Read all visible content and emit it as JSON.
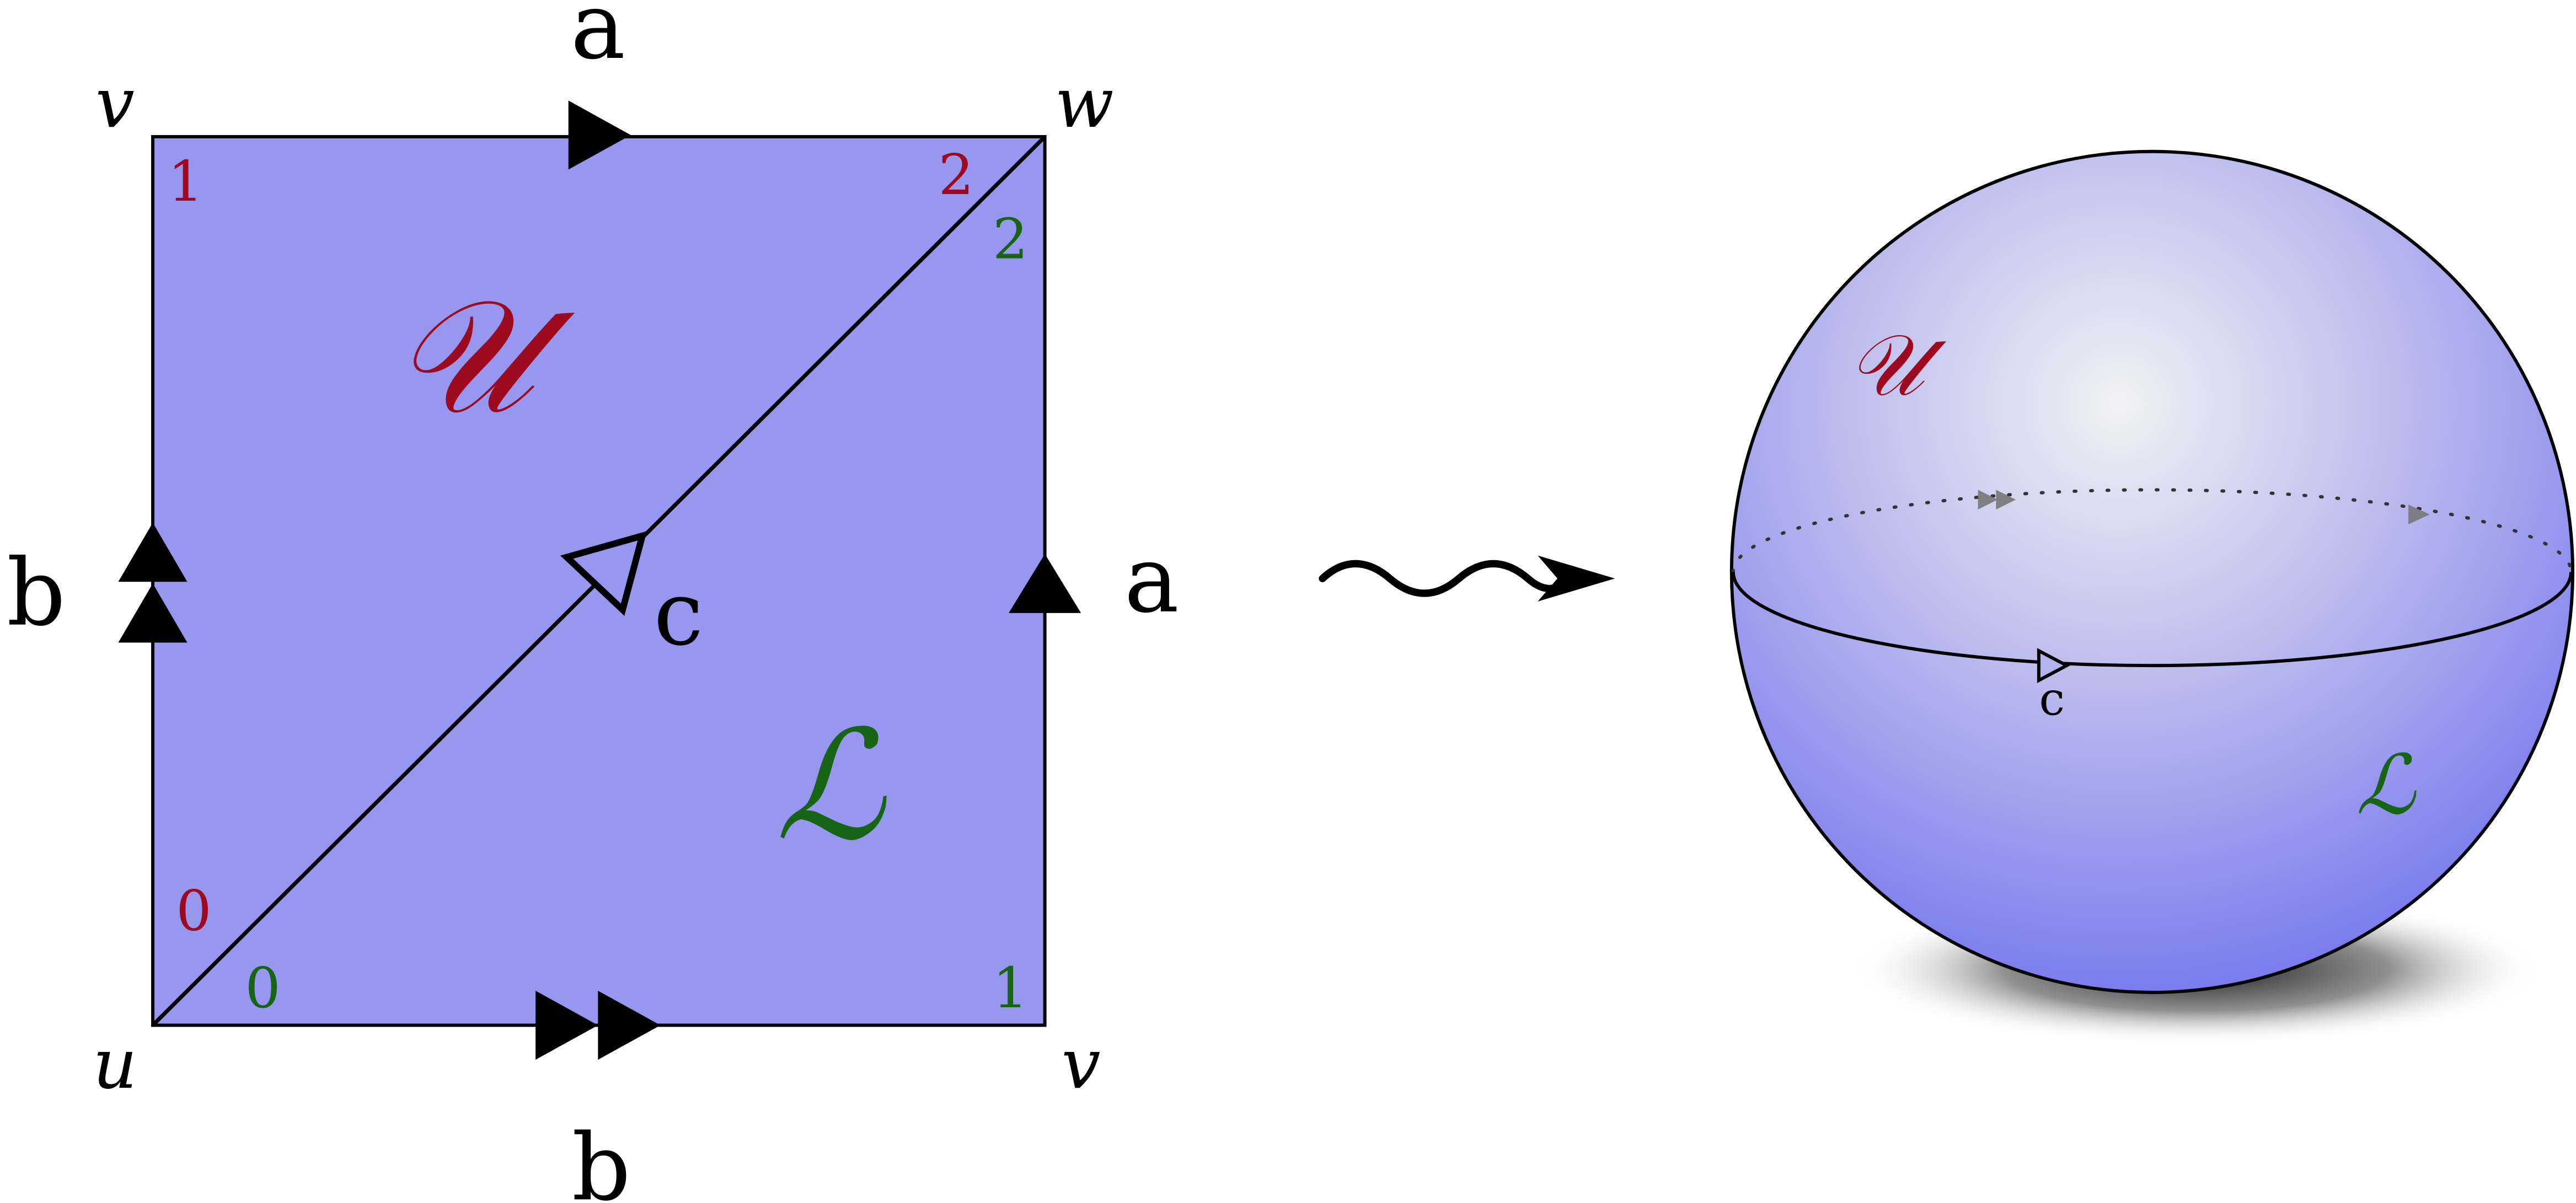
{
  "colors": {
    "fill": "#9797ef",
    "upper": "#9b0a1e",
    "lower": "#176416",
    "stroke": "#000000"
  },
  "square": {
    "vertices": {
      "top_left": "v",
      "top_right": "w",
      "bottom_left": "u",
      "bottom_right": "v"
    },
    "edges": {
      "top": "a",
      "bottom": "b",
      "left": "b",
      "right": "a",
      "diagonal": "c"
    },
    "regions": {
      "upper": "𝒰",
      "lower": "ℒ"
    },
    "corner_indices": {
      "upper_top_left": "1",
      "upper_top_right": "2",
      "upper_bottom_left": "0",
      "lower_top_right": "2",
      "lower_bottom_left": "0",
      "lower_bottom_right": "1"
    }
  },
  "sphere": {
    "upper": "𝒰",
    "lower": "ℒ",
    "equator": "c"
  },
  "arrow_icon": "squiggle-arrow-icon"
}
